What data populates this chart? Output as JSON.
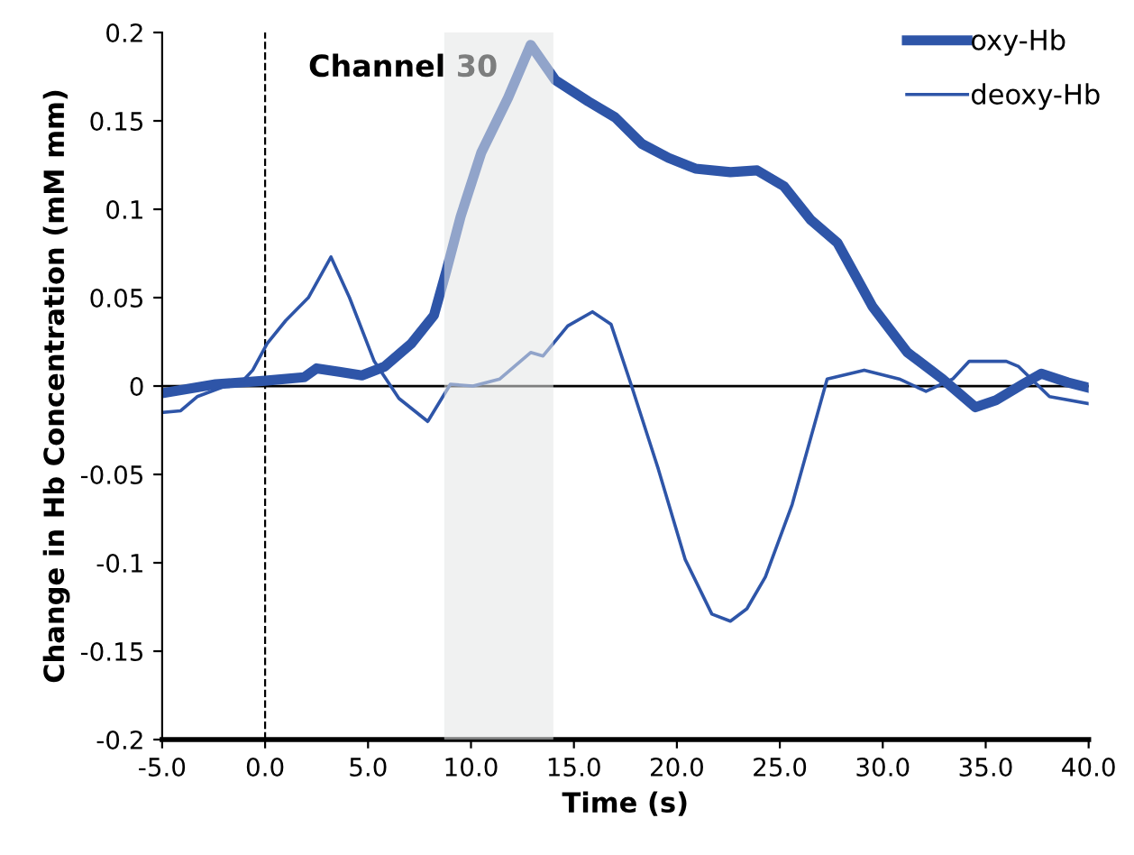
{
  "chart_data": {
    "type": "line",
    "title": "Channel 30",
    "xlabel": "Time (s)",
    "ylabel": "Change in Hb Concentration (mM mm)",
    "xlim": [
      -5,
      40
    ],
    "xticks": [
      {
        "value": -5,
        "label": "-5.0"
      },
      {
        "value": 0,
        "label": "0.0"
      },
      {
        "value": 5,
        "label": "5.0"
      },
      {
        "value": 10,
        "label": "10.0"
      },
      {
        "value": 15,
        "label": "15.0"
      },
      {
        "value": 20,
        "label": "20.0"
      },
      {
        "value": 25,
        "label": "25.0"
      },
      {
        "value": 30,
        "label": "30.0"
      },
      {
        "value": 35,
        "label": "35.0"
      },
      {
        "value": 40,
        "label": "40.0"
      }
    ],
    "ylim": [
      -0.2,
      0.2
    ],
    "yticks": [
      {
        "value": -0.2,
        "label": "-0.2"
      },
      {
        "value": -0.15,
        "label": "-0.15"
      },
      {
        "value": -0.1,
        "label": "-0.1"
      },
      {
        "value": -0.05,
        "label": "-0.05"
      },
      0,
      0.05,
      0.1,
      0.15,
      0.2
    ],
    "grid": false,
    "legend": "top right",
    "marker": "none",
    "ref_lines": [
      {
        "axis": "y",
        "value": 0,
        "color": "#000000",
        "line_style": "solid"
      },
      {
        "axis": "x",
        "value": 0,
        "color": "#000000",
        "line_style": "dashed"
      }
    ],
    "bands": [
      {
        "axis": "x",
        "from": 8.7,
        "to": 14.0,
        "color": "#e3e5e6"
      }
    ],
    "series": [
      {
        "name": "oxy-Hb",
        "color": "#2e55a8",
        "line_style": "solid",
        "x": [
          -5,
          -2.4,
          0,
          1.9,
          2.5,
          3.6,
          4.7,
          5.8,
          7.1,
          8.2,
          8.8,
          9.5,
          10.5,
          11.8,
          12.9,
          14.1,
          15.7,
          17.0,
          18.3,
          19.6,
          20.9,
          22.6,
          23.9,
          25.2,
          26.5,
          27.8,
          29.5,
          31.2,
          32.9,
          34.5,
          35.5,
          36.8,
          37.7,
          39,
          40
        ],
        "values": [
          -0.004,
          0.001,
          0.003,
          0.005,
          0.01,
          0.008,
          0.006,
          0.011,
          0.024,
          0.04,
          0.065,
          0.096,
          0.132,
          0.163,
          0.193,
          0.173,
          0.161,
          0.152,
          0.137,
          0.129,
          0.123,
          0.121,
          0.122,
          0.113,
          0.094,
          0.081,
          0.045,
          0.019,
          0.004,
          -0.012,
          -0.008,
          0.001,
          0.007,
          0.002,
          -0.001
        ]
      },
      {
        "name": "deoxy-Hb",
        "color": "#2e55a8",
        "line_style": "solid",
        "x": [
          -5,
          -4.1,
          -3.3,
          -1.0,
          -0.6,
          0.1,
          1.0,
          2.1,
          3.2,
          4.1,
          5.3,
          6.5,
          7.9,
          9.0,
          10.1,
          11.4,
          12.9,
          13.5,
          14.7,
          15.9,
          16.8,
          17.8,
          19.1,
          20.4,
          21.7,
          22.6,
          23.4,
          24.3,
          25.6,
          27.3,
          29.1,
          30.8,
          32.1,
          33.4,
          34.2,
          36.0,
          36.6,
          38.1,
          40
        ],
        "values": [
          -0.015,
          -0.014,
          -0.006,
          0.004,
          0.009,
          0.024,
          0.037,
          0.05,
          0.073,
          0.05,
          0.014,
          -0.007,
          -0.02,
          0.001,
          0.0,
          0.004,
          0.019,
          0.017,
          0.034,
          0.042,
          0.035,
          0.0,
          -0.047,
          -0.098,
          -0.129,
          -0.133,
          -0.126,
          -0.108,
          -0.067,
          0.004,
          0.009,
          0.004,
          -0.003,
          0.004,
          0.014,
          0.014,
          0.011,
          -0.006,
          -0.01
        ]
      }
    ]
  }
}
